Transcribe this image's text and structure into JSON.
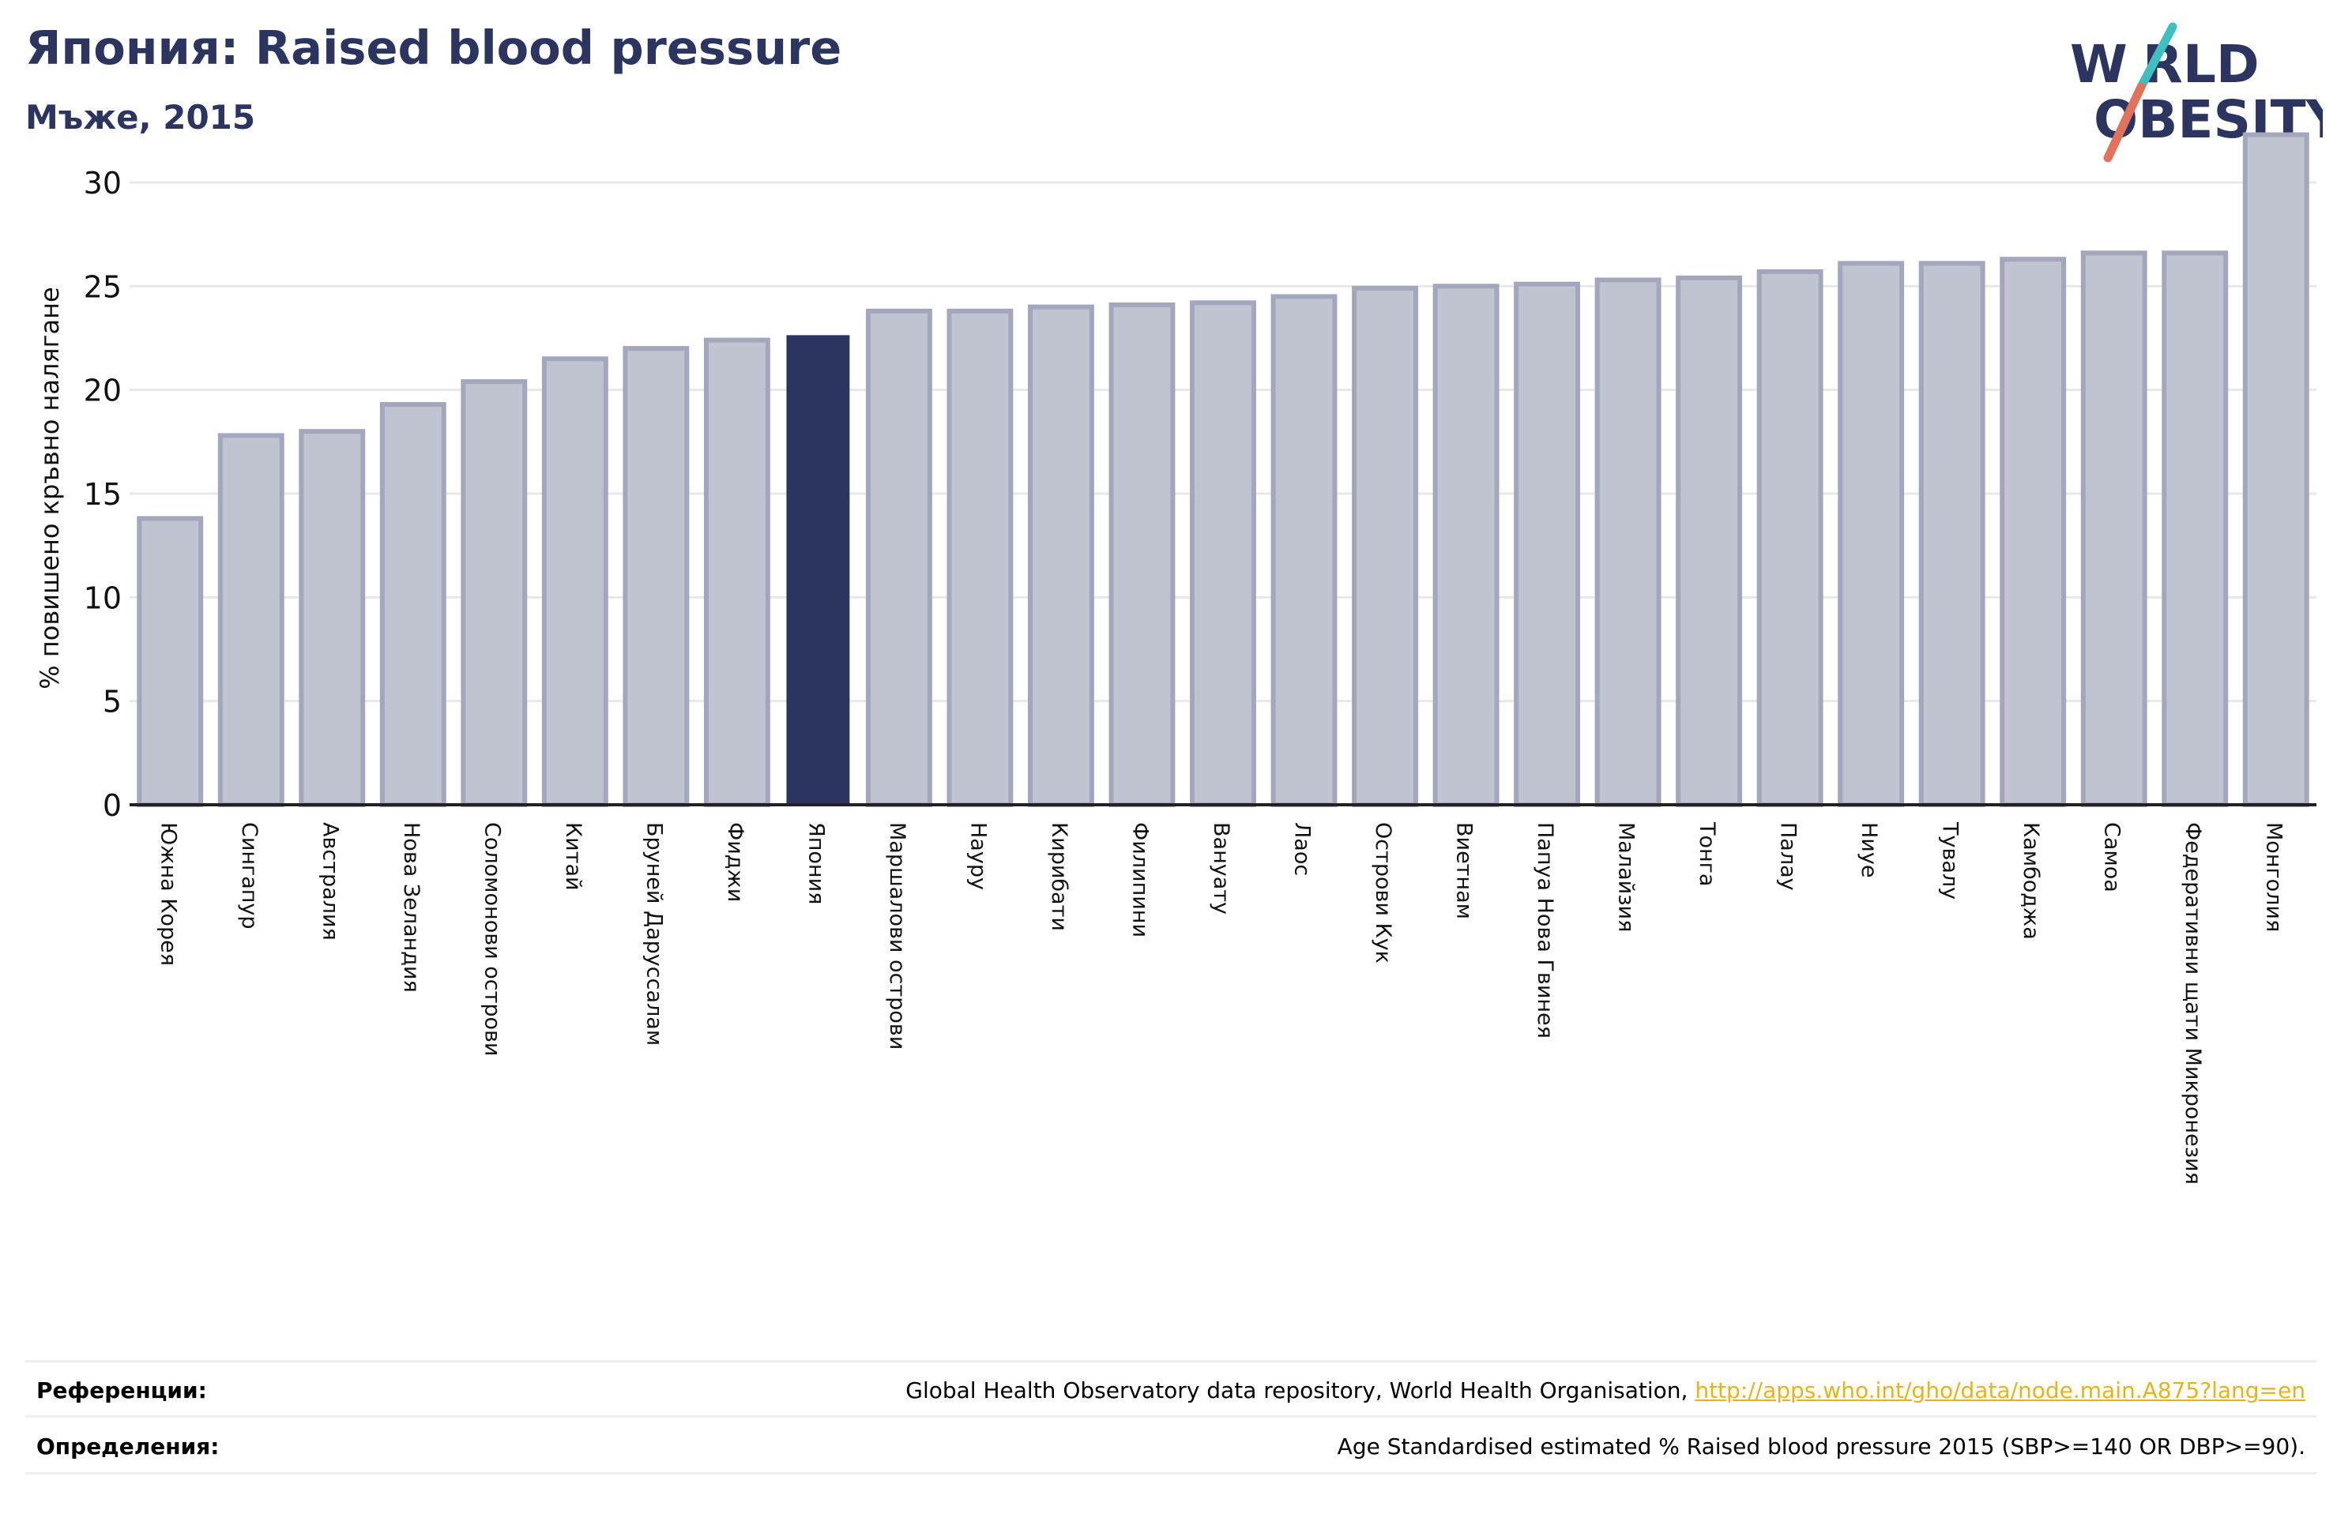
{
  "title": "Япония: Raised blood pressure",
  "subtitle": "Мъже, 2015",
  "logo": {
    "line1": "W",
    "line1b": "RLD",
    "line2": "OBESITY",
    "slash_colors": [
      "#3fbfbf",
      "#e2725b"
    ]
  },
  "colors": {
    "highlight": "#2b3560",
    "bar": "#c0c3d0",
    "bar_edge": "#a3a7bd",
    "axis": "#222222",
    "grid": "#e8e8e8",
    "link": "#e8b319"
  },
  "chart_data": {
    "type": "bar",
    "ylabel": "% повишено кръвно налягане",
    "ylim": [
      0,
      32.5
    ],
    "yticks": [
      0,
      5,
      10,
      15,
      20,
      25,
      30
    ],
    "grid": true,
    "highlight": "Япония",
    "categories": [
      "Южна Корея",
      "Сингапур",
      "Австралия",
      "Нова Зеландия",
      "Соломонови острови",
      "Китай",
      "Бруней Даруссалам",
      "Фиджи",
      "Япония",
      "Маршалови острови",
      "Науру",
      "Кирибати",
      "Филипини",
      "Вануату",
      "Лаос",
      "Острови Кук",
      "Виетнам",
      "Папуа Нова Гвинея",
      "Малайзия",
      "Тонга",
      "Палау",
      "Ниуе",
      "Тувалу",
      "Камбоджа",
      "Самоа",
      "Федеративни щати Микронезия",
      "Монголия"
    ],
    "values": [
      13.8,
      17.8,
      18.0,
      19.3,
      20.4,
      21.5,
      22.0,
      22.4,
      22.6,
      23.8,
      23.8,
      24.0,
      24.1,
      24.2,
      24.5,
      24.9,
      25.0,
      25.1,
      25.3,
      25.4,
      25.7,
      26.1,
      26.1,
      26.3,
      26.6,
      26.6,
      32.3
    ]
  },
  "footer": {
    "references_label": "Референции:",
    "references_text": "Global Health Observatory data repository, World Health Organisation, ",
    "references_link": "http://apps.who.int/gho/data/node.main.A875?lang=en",
    "definitions_label": "Определения:",
    "definitions_text": "Age Standardised estimated % Raised blood pressure 2015 (SBP>=140 OR DBP>=90)."
  }
}
